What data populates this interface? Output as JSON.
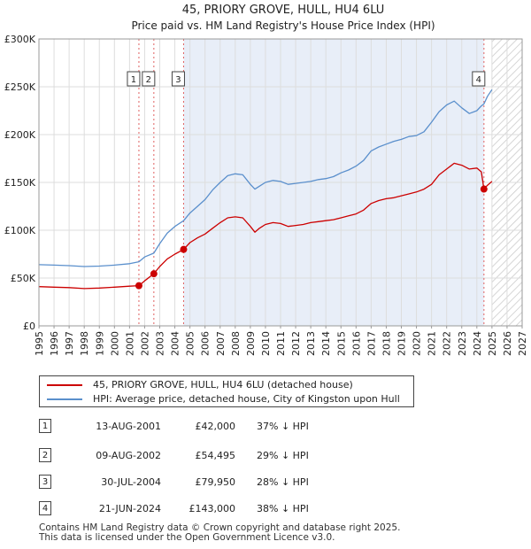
{
  "colors": {
    "price_line": "#cc0000",
    "hpi_line": "#5a8fcc",
    "shade": "#e8eef8",
    "vline": "#e06060",
    "grid": "#dddddd"
  },
  "chart_data": {
    "type": "line",
    "title": "45, PRIORY GROVE, HULL, HU4 6LU",
    "subtitle": "Price paid vs. HM Land Registry's House Price Index (HPI)",
    "xlabel": "",
    "ylabel": "",
    "xlim": [
      1995,
      2027
    ],
    "ylim": [
      0,
      300000
    ],
    "x_ticks": [
      "1995",
      "1996",
      "1997",
      "1998",
      "1999",
      "2000",
      "2001",
      "2002",
      "2003",
      "2004",
      "2005",
      "2006",
      "2007",
      "2008",
      "2009",
      "2010",
      "2011",
      "2012",
      "2013",
      "2014",
      "2015",
      "2016",
      "2017",
      "2018",
      "2019",
      "2020",
      "2021",
      "2022",
      "2023",
      "2024",
      "2025",
      "2026",
      "2027"
    ],
    "y_ticks": [
      {
        "value": 0,
        "label": "£0"
      },
      {
        "value": 50000,
        "label": "£50K"
      },
      {
        "value": 100000,
        "label": "£100K"
      },
      {
        "value": 150000,
        "label": "£150K"
      },
      {
        "value": 200000,
        "label": "£200K"
      },
      {
        "value": 250000,
        "label": "£250K"
      },
      {
        "value": 300000,
        "label": "£300K"
      }
    ],
    "shaded_range": [
      2004.58,
      2024.47
    ],
    "future_hatch_from": 2025.0,
    "series": [
      {
        "name": "45, PRIORY GROVE, HULL, HU4 6LU (detached house)",
        "color": "#cc0000",
        "x": [
          1995.0,
          1996.0,
          1997.0,
          1998.0,
          1999.0,
          2000.0,
          2001.0,
          2001.62,
          2001.62,
          2002.0,
          2002.61,
          2002.61,
          2003.0,
          2003.5,
          2004.0,
          2004.58,
          2004.58,
          2005.0,
          2005.5,
          2006.0,
          2006.5,
          2007.0,
          2007.5,
          2008.0,
          2008.5,
          2009.0,
          2009.3,
          2009.6,
          2010.0,
          2010.5,
          2011.0,
          2011.5,
          2012.0,
          2012.5,
          2013.0,
          2013.5,
          2014.0,
          2014.5,
          2015.0,
          2015.5,
          2016.0,
          2016.5,
          2017.0,
          2017.5,
          2018.0,
          2018.5,
          2019.0,
          2019.5,
          2020.0,
          2020.5,
          2021.0,
          2021.5,
          2022.0,
          2022.5,
          2023.0,
          2023.5,
          2024.0,
          2024.3,
          2024.47,
          2024.47,
          2024.7,
          2025.0
        ],
        "y": [
          41000,
          40500,
          40000,
          39000,
          39500,
          40500,
          41500,
          42000,
          42000,
          47000,
          54495,
          54495,
          62000,
          70000,
          75000,
          79950,
          79950,
          87000,
          92000,
          96000,
          102000,
          108000,
          113000,
          114000,
          113000,
          104000,
          98000,
          102000,
          106000,
          108000,
          107000,
          104000,
          105000,
          106000,
          108000,
          109000,
          110000,
          111000,
          113000,
          115000,
          117000,
          121000,
          128000,
          131000,
          133000,
          134000,
          136000,
          138000,
          140000,
          143000,
          148000,
          158000,
          164000,
          170000,
          168000,
          164000,
          165000,
          161000,
          143000,
          143000,
          147000,
          151000
        ]
      },
      {
        "name": "HPI: Average price, detached house, City of Kingston upon Hull",
        "color": "#5a8fcc",
        "x": [
          1995.0,
          1996.0,
          1997.0,
          1998.0,
          1999.0,
          2000.0,
          2001.0,
          2001.62,
          2002.0,
          2002.61,
          2003.0,
          2003.5,
          2004.0,
          2004.58,
          2005.0,
          2005.5,
          2006.0,
          2006.5,
          2007.0,
          2007.5,
          2008.0,
          2008.5,
          2009.0,
          2009.3,
          2009.6,
          2010.0,
          2010.5,
          2011.0,
          2011.5,
          2012.0,
          2012.5,
          2013.0,
          2013.5,
          2014.0,
          2014.5,
          2015.0,
          2015.5,
          2016.0,
          2016.5,
          2017.0,
          2017.5,
          2018.0,
          2018.5,
          2019.0,
          2019.5,
          2020.0,
          2020.5,
          2021.0,
          2021.5,
          2022.0,
          2022.5,
          2023.0,
          2023.5,
          2024.0,
          2024.3,
          2024.47,
          2024.7,
          2025.0
        ],
        "y": [
          64000,
          63500,
          63000,
          62000,
          62500,
          63500,
          65000,
          67000,
          72000,
          76000,
          86000,
          97000,
          104000,
          110000,
          118000,
          125000,
          132000,
          142000,
          150000,
          157000,
          159000,
          158000,
          148000,
          143000,
          146000,
          150000,
          152000,
          151000,
          148000,
          149000,
          150000,
          151000,
          153000,
          154000,
          156000,
          160000,
          163000,
          167000,
          173000,
          183000,
          187000,
          190000,
          193000,
          195000,
          198000,
          199000,
          203000,
          213000,
          224000,
          231000,
          235000,
          228000,
          222000,
          225000,
          230000,
          232000,
          240000,
          247000
        ]
      }
    ],
    "sales": [
      {
        "num": "1",
        "x": 2001.62,
        "y": 42000
      },
      {
        "num": "2",
        "x": 2002.61,
        "y": 54495
      },
      {
        "num": "3",
        "x": 2004.58,
        "y": 79950
      },
      {
        "num": "4",
        "x": 2024.47,
        "y": 143000
      }
    ],
    "legend_position": "below"
  },
  "legend": {
    "price_label": "45, PRIORY GROVE, HULL, HU4 6LU (detached house)",
    "hpi_label": "HPI: Average price, detached house, City of Kingston upon Hull"
  },
  "transactions": [
    {
      "num": "1",
      "date": "13-AUG-2001",
      "price": "£42,000",
      "hpi": "37% ↓ HPI"
    },
    {
      "num": "2",
      "date": "09-AUG-2002",
      "price": "£54,495",
      "hpi": "29% ↓ HPI"
    },
    {
      "num": "3",
      "date": "30-JUL-2004",
      "price": "£79,950",
      "hpi": "28% ↓ HPI"
    },
    {
      "num": "4",
      "date": "21-JUN-2024",
      "price": "£143,000",
      "hpi": "38% ↓ HPI"
    }
  ],
  "footer": {
    "line1": "Contains HM Land Registry data © Crown copyright and database right 2025.",
    "line2": "This data is licensed under the Open Government Licence v3.0."
  }
}
